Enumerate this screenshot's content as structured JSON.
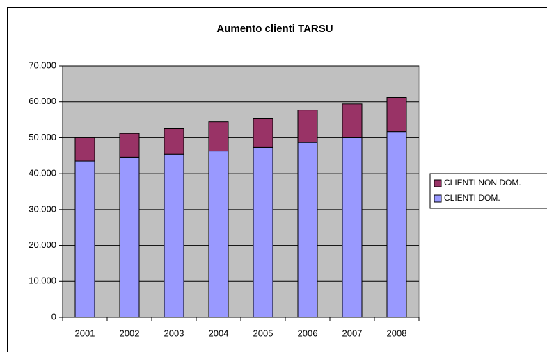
{
  "chart_data": {
    "type": "stacked_bar",
    "title": "Aumento clienti TARSU",
    "categories": [
      "2001",
      "2002",
      "2003",
      "2004",
      "2005",
      "2006",
      "2007",
      "2008"
    ],
    "series": [
      {
        "name": "CLIENTI DOM.",
        "color": "#9999ff",
        "values": [
          43500,
          44600,
          45400,
          46300,
          47300,
          48700,
          50000,
          51700
        ]
      },
      {
        "name": "CLIENTI NON DOM.",
        "color": "#993366",
        "values": [
          6500,
          6600,
          7100,
          8100,
          8100,
          9000,
          9400,
          9500
        ]
      }
    ],
    "ylim": [
      0,
      70000
    ],
    "yticks": [
      0,
      {
        "value": 10000,
        "label": "10.000"
      },
      {
        "value": 20000,
        "label": "20.000"
      },
      {
        "value": 30000,
        "label": "30.000"
      },
      {
        "value": 40000,
        "label": "40.000"
      },
      {
        "value": 50000,
        "label": "50.000"
      },
      {
        "value": 60000,
        "label": "60.000"
      },
      {
        "value": 70000,
        "label": "70.000"
      }
    ],
    "grid": true,
    "legend": "right",
    "plot_background": "#c0c0c0"
  }
}
